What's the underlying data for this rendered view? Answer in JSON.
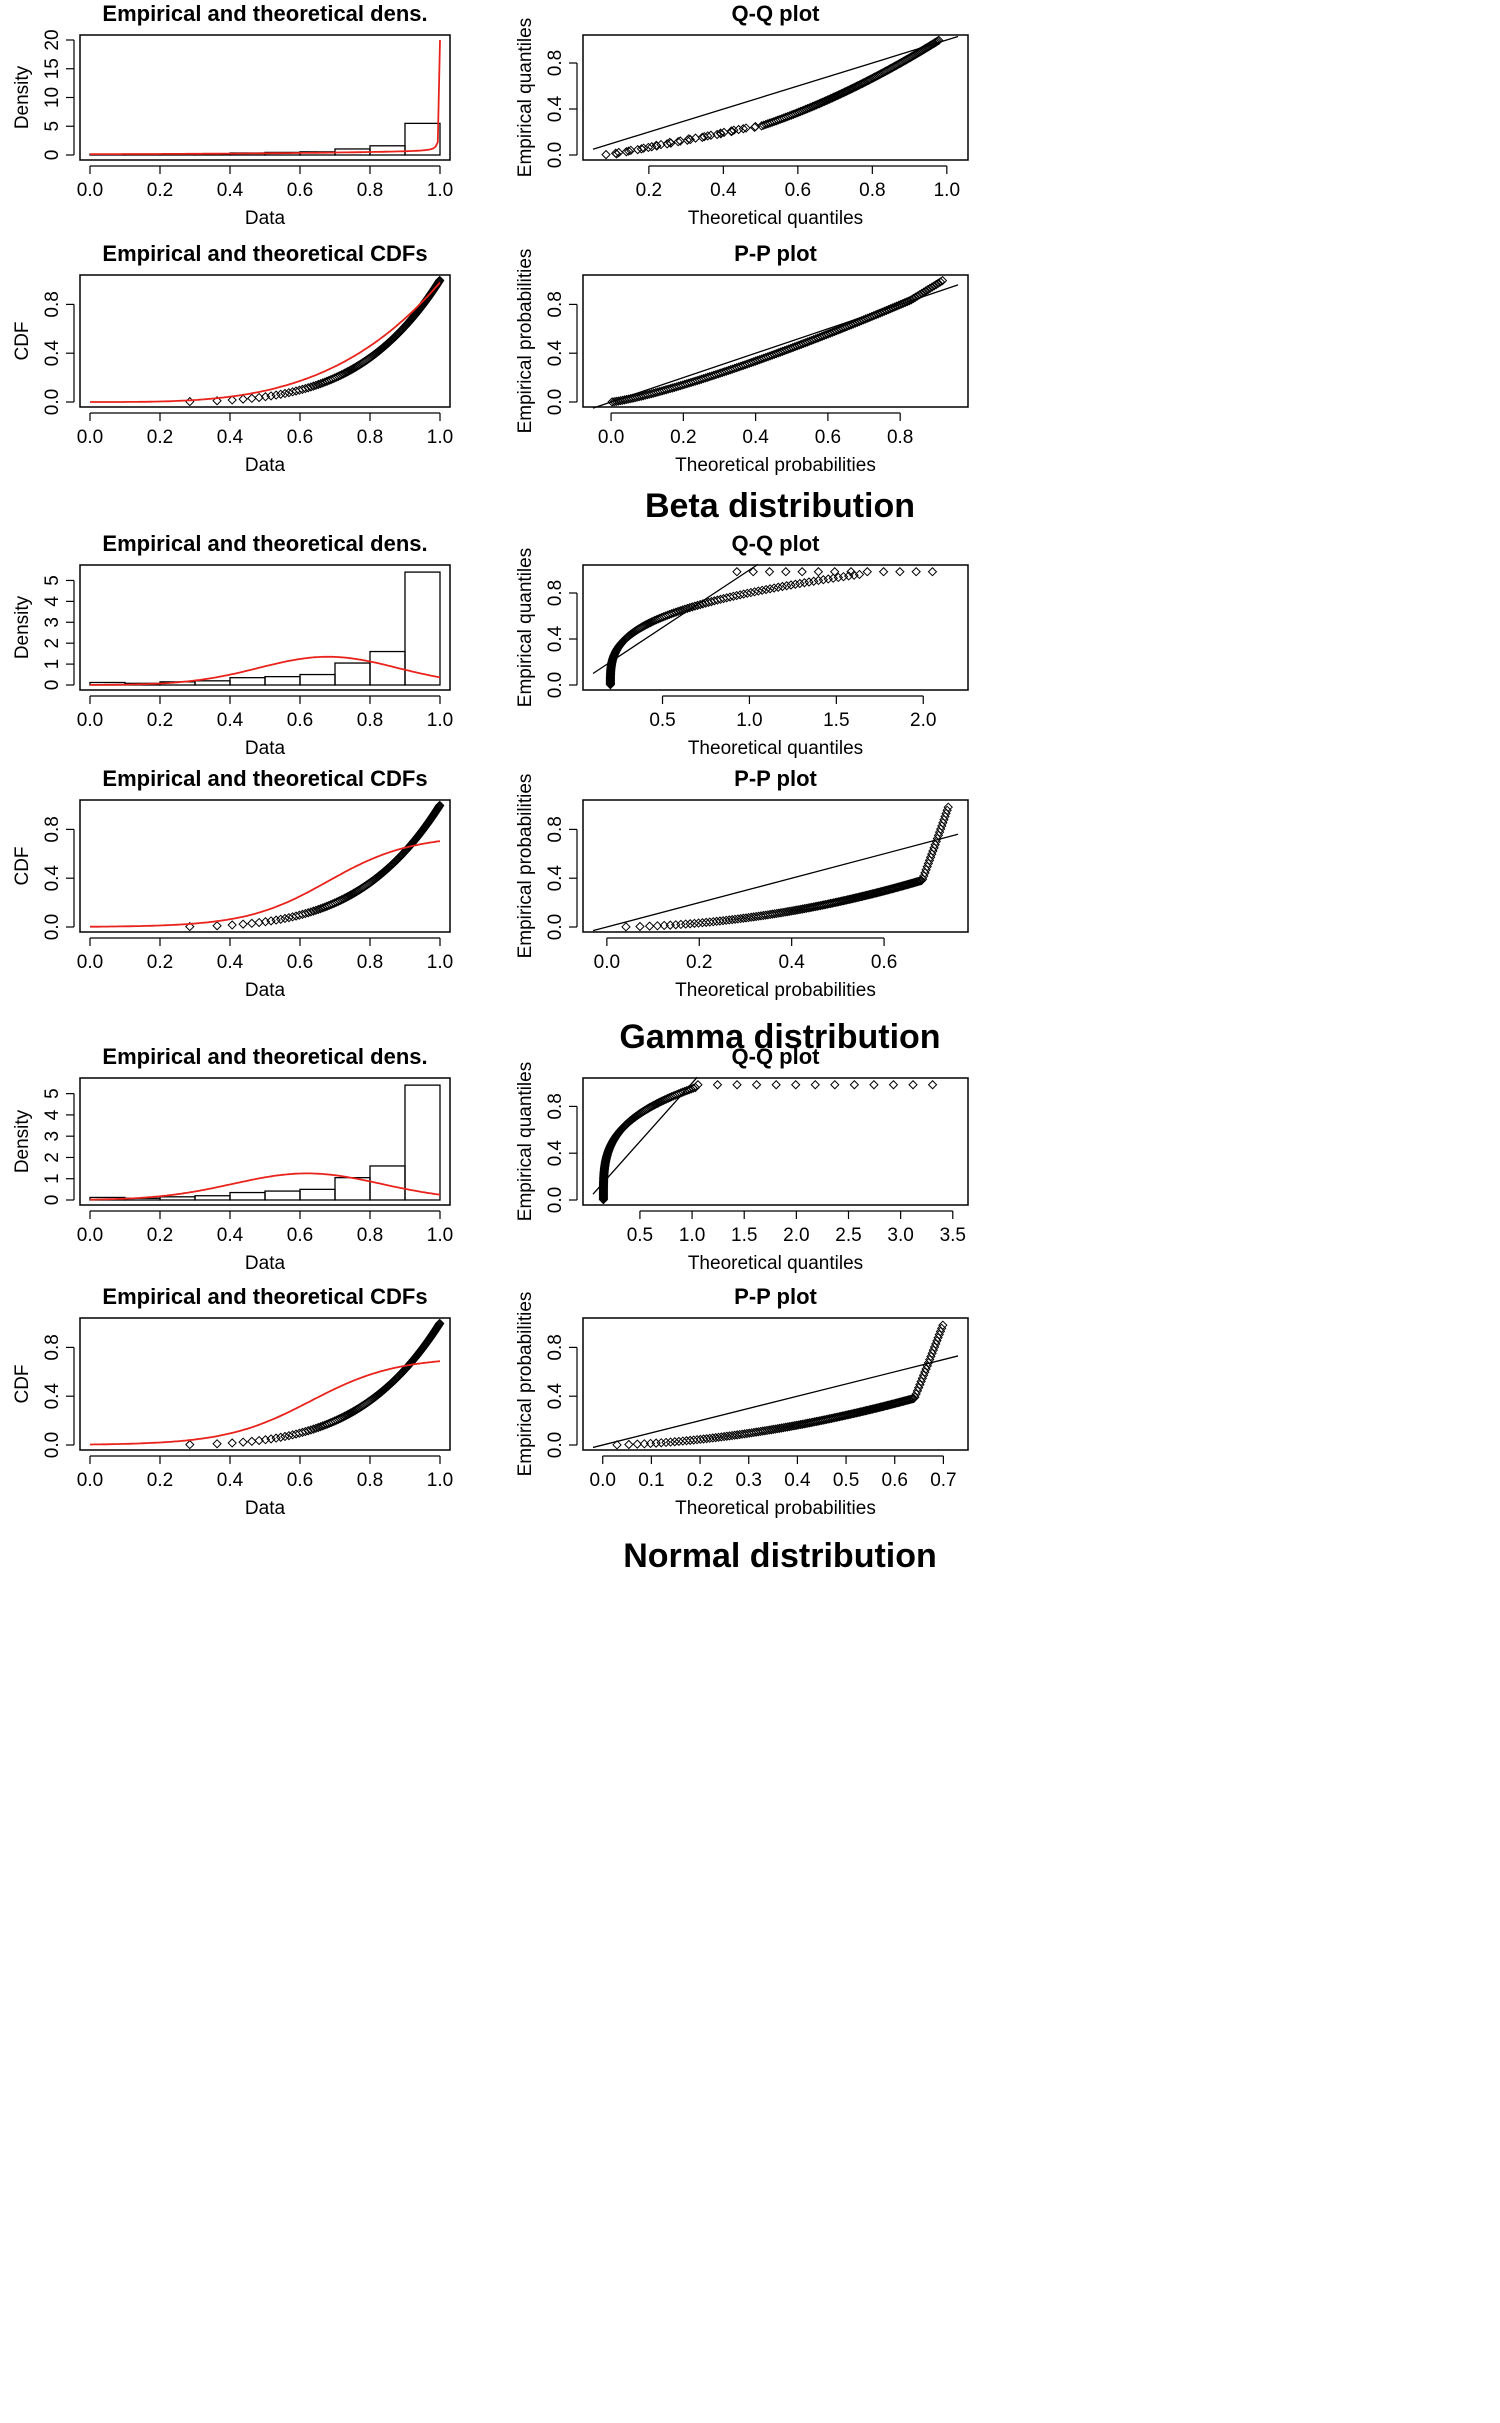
{
  "figure": {
    "sections": [
      {
        "caption": "Beta distribution",
        "panels": [
          {
            "title": "Empirical and theoretical dens.",
            "chart_data": {
              "type": "histogram",
              "xlabel": "Data",
              "ylabel": "Density",
              "xlim": [
                0,
                1
              ],
              "ylim": [
                0,
                20
              ],
              "xticks": [
                "0.0",
                "0.2",
                "0.4",
                "0.6",
                "0.8",
                "1.0"
              ],
              "yticks": [
                "0",
                "5",
                "10",
                "15",
                "20"
              ],
              "bins": [
                0,
                0.1,
                0.2,
                0.3,
                0.4,
                0.5,
                0.6,
                0.7,
                0.8,
                0.9,
                1.0
              ],
              "bar_heights": [
                0.12,
                0.08,
                0.12,
                0.2,
                0.35,
                0.45,
                0.55,
                1.05,
                1.6,
                5.5
              ],
              "fitted_curve": {
                "color": "#e8231b",
                "shape": "beta-U",
                "peak": 20
              }
            }
          },
          {
            "title": "Q-Q plot",
            "chart_data": {
              "type": "scatter",
              "xlabel": "Theoretical quantiles",
              "ylabel": "Empirical quantiles",
              "xlim": [
                0.05,
                1.03
              ],
              "ylim": [
                0,
                1
              ],
              "xticks": [
                "0.2",
                "0.4",
                "0.6",
                "0.8",
                "1.0"
              ],
              "yticks": [
                "0.0",
                "0.4",
                "0.8"
              ],
              "reference_line": "y=x",
              "points_shape": "qq-beta"
            }
          },
          {
            "title": "Empirical and theoretical CDFs",
            "chart_data": {
              "type": "line",
              "xlabel": "Data",
              "ylabel": "CDF",
              "xlim": [
                0,
                1
              ],
              "ylim": [
                0,
                1
              ],
              "xticks": [
                "0.0",
                "0.2",
                "0.4",
                "0.6",
                "0.8",
                "1.0"
              ],
              "yticks": [
                "0.0",
                "0.4",
                "0.8"
              ],
              "points_shape": "cdf-empirical",
              "fitted_curve": {
                "color": "#e8231b",
                "shape": "cdf-beta"
              }
            }
          },
          {
            "title": "P-P plot",
            "chart_data": {
              "type": "scatter",
              "xlabel": "Theoretical probabilities",
              "ylabel": "Empirical probabilities",
              "xlim": [
                -0.05,
                0.96
              ],
              "ylim": [
                0,
                1
              ],
              "xticks": [
                "0.0",
                "0.2",
                "0.4",
                "0.6",
                "0.8"
              ],
              "yticks": [
                "0.0",
                "0.4",
                "0.8"
              ],
              "reference_line": "y=x",
              "points_shape": "pp-beta"
            }
          }
        ]
      },
      {
        "caption": "Gamma distribution",
        "panels": [
          {
            "title": "Empirical and theoretical dens.",
            "chart_data": {
              "type": "histogram",
              "xlabel": "Data",
              "ylabel": "Density",
              "xlim": [
                0,
                1
              ],
              "ylim": [
                0,
                5.5
              ],
              "xticks": [
                "0.0",
                "0.2",
                "0.4",
                "0.6",
                "0.8",
                "1.0"
              ],
              "yticks": [
                "0",
                "1",
                "2",
                "3",
                "4",
                "5"
              ],
              "bins": [
                0,
                0.1,
                0.2,
                0.3,
                0.4,
                0.5,
                0.6,
                0.7,
                0.8,
                0.9,
                1.0
              ],
              "bar_heights": [
                0.12,
                0.08,
                0.15,
                0.2,
                0.35,
                0.4,
                0.5,
                1.05,
                1.6,
                5.4
              ],
              "fitted_curve": {
                "color": "#e8231b",
                "shape": "gamma-bump",
                "peak": 1.35
              }
            }
          },
          {
            "title": "Q-Q plot",
            "chart_data": {
              "type": "scatter",
              "xlabel": "Theoretical quantiles",
              "ylabel": "Empirical quantiles",
              "xlim": [
                0.1,
                2.2
              ],
              "ylim": [
                0,
                1
              ],
              "xticks": [
                "0.5",
                "1.0",
                "1.5",
                "2.0"
              ],
              "yticks": [
                "0.0",
                "0.4",
                "0.8"
              ],
              "reference_line": "y=x",
              "points_shape": "qq-gamma"
            }
          },
          {
            "title": "Empirical and theoretical CDFs",
            "chart_data": {
              "type": "line",
              "xlabel": "Data",
              "ylabel": "CDF",
              "xlim": [
                0,
                1
              ],
              "ylim": [
                0,
                1
              ],
              "xticks": [
                "0.0",
                "0.2",
                "0.4",
                "0.6",
                "0.8",
                "1.0"
              ],
              "yticks": [
                "0.0",
                "0.4",
                "0.8"
              ],
              "points_shape": "cdf-empirical",
              "fitted_curve": {
                "color": "#e8231b",
                "shape": "cdf-gamma"
              }
            }
          },
          {
            "title": "P-P plot",
            "chart_data": {
              "type": "scatter",
              "xlabel": "Theoretical probabilities",
              "ylabel": "Empirical probabilities",
              "xlim": [
                -0.03,
                0.76
              ],
              "ylim": [
                0,
                1
              ],
              "xticks": [
                "0.0",
                "0.2",
                "0.4",
                "0.6"
              ],
              "yticks": [
                "0.0",
                "0.4",
                "0.8"
              ],
              "reference_line": "y=x",
              "points_shape": "pp-gamma"
            }
          }
        ]
      },
      {
        "caption": "Normal distribution",
        "panels": [
          {
            "title": "Empirical and theoretical dens.",
            "chart_data": {
              "type": "histogram",
              "xlabel": "Data",
              "ylabel": "Density",
              "xlim": [
                0,
                1
              ],
              "ylim": [
                0,
                5.5
              ],
              "xticks": [
                "0.0",
                "0.2",
                "0.4",
                "0.6",
                "0.8",
                "1.0"
              ],
              "yticks": [
                "0",
                "1",
                "2",
                "3",
                "4",
                "5"
              ],
              "bins": [
                0,
                0.1,
                0.2,
                0.3,
                0.4,
                0.5,
                0.6,
                0.7,
                0.8,
                0.9,
                1.0
              ],
              "bar_heights": [
                0.12,
                0.08,
                0.15,
                0.2,
                0.35,
                0.42,
                0.5,
                1.05,
                1.6,
                5.4
              ],
              "fitted_curve": {
                "color": "#e8231b",
                "shape": "normal-bump",
                "peak": 1.25
              }
            }
          },
          {
            "title": "Q-Q plot",
            "chart_data": {
              "type": "scatter",
              "xlabel": "Theoretical quantiles",
              "ylabel": "Empirical quantiles",
              "xlim": [
                0.05,
                3.55
              ],
              "ylim": [
                0,
                1
              ],
              "xticks": [
                "0.5",
                "1.0",
                "1.5",
                "2.0",
                "2.5",
                "3.0",
                "3.5"
              ],
              "yticks": [
                "0.0",
                "0.4",
                "0.8"
              ],
              "reference_line": "y=x",
              "points_shape": "qq-normal"
            }
          },
          {
            "title": "Empirical and theoretical CDFs",
            "chart_data": {
              "type": "line",
              "xlabel": "Data",
              "ylabel": "CDF",
              "xlim": [
                0,
                1
              ],
              "ylim": [
                0,
                1
              ],
              "xticks": [
                "0.0",
                "0.2",
                "0.4",
                "0.6",
                "0.8",
                "1.0"
              ],
              "yticks": [
                "0.0",
                "0.4",
                "0.8"
              ],
              "points_shape": "cdf-empirical",
              "fitted_curve": {
                "color": "#e8231b",
                "shape": "cdf-normal"
              }
            }
          },
          {
            "title": "P-P plot",
            "chart_data": {
              "type": "scatter",
              "xlabel": "Theoretical probabilities",
              "ylabel": "Empirical probabilities",
              "xlim": [
                -0.02,
                0.73
              ],
              "ylim": [
                0,
                1
              ],
              "xticks": [
                "0.0",
                "0.1",
                "0.2",
                "0.3",
                "0.4",
                "0.5",
                "0.6",
                "0.7"
              ],
              "yticks": [
                "0.0",
                "0.4",
                "0.8"
              ],
              "reference_line": "y=x",
              "points_shape": "pp-normal"
            }
          }
        ]
      }
    ]
  },
  "colors": {
    "fit_line": "#e8231b",
    "ink": "#000000",
    "background": "#ffffff"
  }
}
